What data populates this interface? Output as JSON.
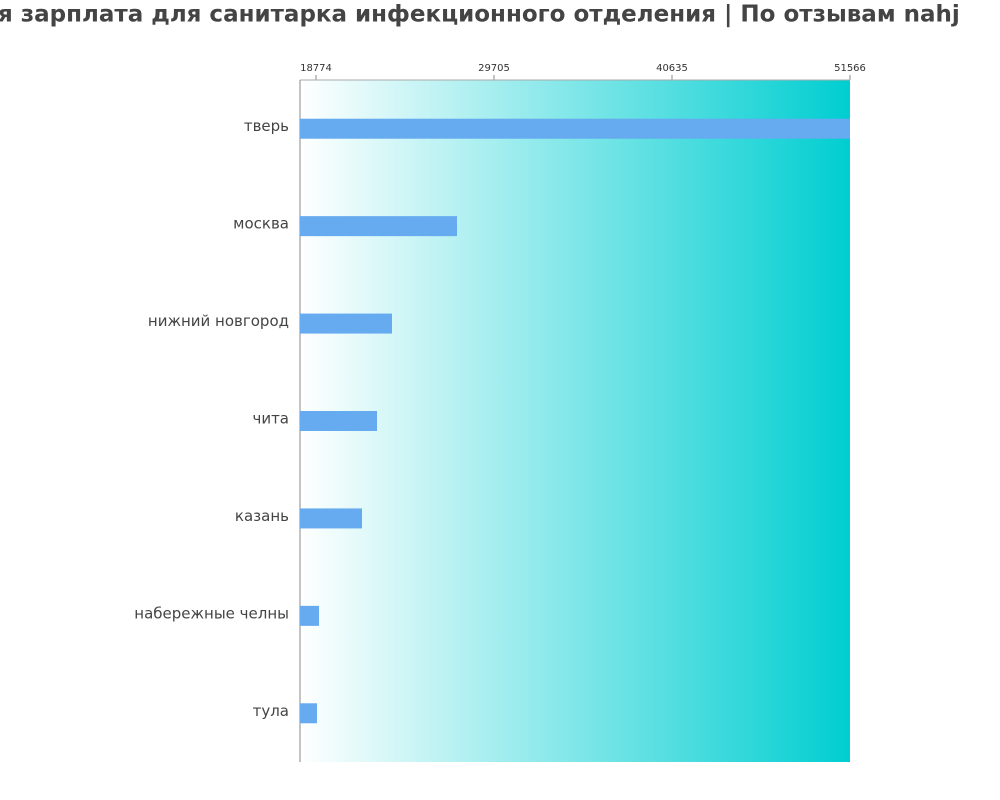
{
  "chart_data": {
    "type": "hbar",
    "title": "я зарплата для санитарка инфекционного отделения | По отзывам nahj",
    "categories": [
      "тверь",
      "москва",
      "нижний новгород",
      "чита",
      "казань",
      "набережные челны",
      "тула"
    ],
    "values": [
      51566,
      27433,
      23441,
      22520,
      21599,
      18958,
      18835
    ],
    "color": "#66aaf0",
    "background_gradient": [
      "#ffffff",
      "#00ced1"
    ],
    "xlim": [
      17792,
      51566
    ],
    "xticks": [
      18774,
      29705,
      40635,
      51566
    ]
  }
}
